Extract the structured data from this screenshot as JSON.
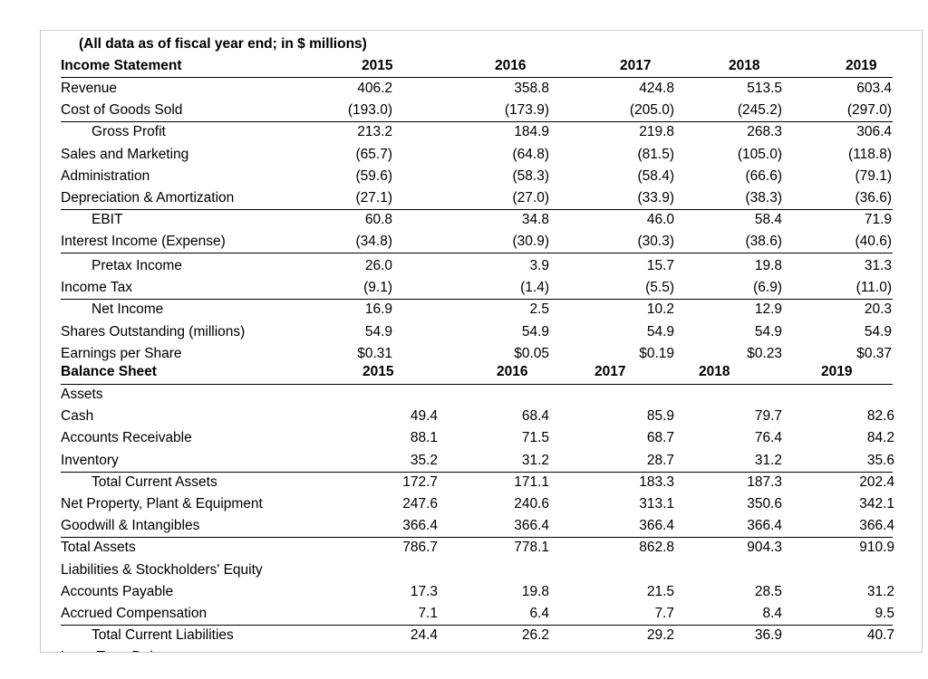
{
  "note": "(All data as of fiscal year end; in $ millions)",
  "income_statement": {
    "title": "Income Statement",
    "years": [
      "2015",
      "2016",
      "2017",
      "2018",
      "2019"
    ],
    "rows": [
      {
        "label": "Revenue",
        "values": [
          "406.2",
          "358.8",
          "424.8",
          "513.5",
          "603.4"
        ]
      },
      {
        "label": "Cost of Goods Sold",
        "values": [
          "(193.0)",
          "(173.9)",
          "(205.0)",
          "(245.2)",
          "(297.0)"
        ],
        "rule_below": true
      },
      {
        "label": "Gross Profit",
        "indent": true,
        "values": [
          "213.2",
          "184.9",
          "219.8",
          "268.3",
          "306.4"
        ]
      },
      {
        "label": "Sales and Marketing",
        "values": [
          "(65.7)",
          "(64.8)",
          "(81.5)",
          "(105.0)",
          "(118.8)"
        ]
      },
      {
        "label": "Administration",
        "values": [
          "(59.6)",
          "(58.3)",
          "(58.4)",
          "(66.6)",
          "(79.1)"
        ]
      },
      {
        "label": "Depreciation & Amortization",
        "values": [
          "(27.1)",
          "(27.0)",
          "(33.9)",
          "(38.3)",
          "(36.6)"
        ],
        "rule_below": true
      },
      {
        "label": "EBIT",
        "indent": true,
        "values": [
          "60.8",
          "34.8",
          "46.0",
          "58.4",
          "71.9"
        ]
      },
      {
        "label": "Interest Income (Expense)",
        "values": [
          "(34.8)",
          "(30.9)",
          "(30.3)",
          "(38.6)",
          "(40.6)"
        ],
        "rule_below": true
      },
      {
        "label": "Pretax Income",
        "indent": true,
        "values": [
          "26.0",
          "3.9",
          "15.7",
          "19.8",
          "31.3"
        ]
      },
      {
        "label": "Income Tax",
        "values": [
          "(9.1)",
          "(1.4)",
          "(5.5)",
          "(6.9)",
          "(11.0)"
        ],
        "rule_below": true
      },
      {
        "label": "Net Income",
        "indent": true,
        "values": [
          "16.9",
          "2.5",
          "10.2",
          "12.9",
          "20.3"
        ]
      },
      {
        "label": "Shares Outstanding (millions)",
        "values": [
          "54.9",
          "54.9",
          "54.9",
          "54.9",
          "54.9"
        ]
      },
      {
        "label": "Earnings per Share",
        "values": [
          "$0.31",
          "$0.05",
          "$0.19",
          "$0.23",
          "$0.37"
        ]
      }
    ]
  },
  "balance_sheet": {
    "title": "Balance Sheet",
    "years": [
      "2015",
      "2016",
      "2017",
      "2018",
      "2019"
    ],
    "rows": [
      {
        "label": "Assets",
        "values": []
      },
      {
        "label": "Cash",
        "values": [
          "49.4",
          "68.4",
          "85.9",
          "79.7",
          "82.6"
        ]
      },
      {
        "label": "Accounts Receivable",
        "values": [
          "88.1",
          "71.5",
          "68.7",
          "76.4",
          "84.2"
        ]
      },
      {
        "label": "Inventory",
        "values": [
          "35.2",
          "31.2",
          "28.7",
          "31.2",
          "35.6"
        ],
        "rule_below": true
      },
      {
        "label": "Total Current Assets",
        "indent": true,
        "values": [
          "172.7",
          "171.1",
          "183.3",
          "187.3",
          "202.4"
        ]
      },
      {
        "label": "Net Property, Plant & Equipment",
        "values": [
          "247.6",
          "240.6",
          "313.1",
          "350.6",
          "342.1"
        ]
      },
      {
        "label": "Goodwill & Intangibles",
        "values": [
          "366.4",
          "366.4",
          "366.4",
          "366.4",
          "366.4"
        ],
        "rule_below": true
      },
      {
        "label": "Total Assets",
        "values": [
          "786.7",
          "778.1",
          "862.8",
          "904.3",
          "910.9"
        ]
      },
      {
        "label": "Liabilities & Stockholders' Equity",
        "values": []
      },
      {
        "label": "Accounts Payable",
        "values": [
          "17.3",
          "19.8",
          "21.5",
          "28.5",
          "31.2"
        ]
      },
      {
        "label": "Accrued Compensation",
        "values": [
          "7.1",
          "6.4",
          "7.7",
          "8.4",
          "9.5"
        ],
        "rule_below": true
      },
      {
        "label": "Total Current Liabilities",
        "indent": true,
        "values": [
          "24.4",
          "26.2",
          "29.2",
          "36.9",
          "40.7"
        ]
      },
      {
        "label": "Long-Term Debt",
        "values": []
      }
    ]
  }
}
